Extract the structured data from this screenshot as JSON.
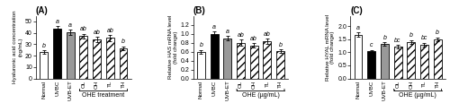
{
  "chart_data": [
    {
      "type": "bar",
      "title": "(A)",
      "ylabel": "Hyaluronic acid concentration\n(ng/mL)",
      "categories": [
        "Normal",
        "UVBC",
        "UVB-ET",
        "OL",
        "OH",
        "TL",
        "TH"
      ],
      "values": [
        23.0,
        43.5,
        40.5,
        37.0,
        34.0,
        35.5,
        26.5
      ],
      "errors": [
        1.5,
        2.5,
        2.0,
        2.0,
        2.5,
        2.5,
        1.5
      ],
      "letters": [
        "b",
        "a",
        "a",
        "ab",
        "ab",
        "ab",
        "b"
      ],
      "colors": [
        "white",
        "black",
        "#999999",
        "white",
        "white",
        "white",
        "white"
      ],
      "annotations": [
        {
          "text": "OHE treatment",
          "from": "OL",
          "to": "TH"
        }
      ],
      "ylim": [
        0,
        55
      ],
      "yticks": [
        0,
        10,
        20,
        30,
        40,
        50
      ],
      "grid": false
    },
    {
      "type": "bar",
      "title": "(B)",
      "ylabel": "Relative HAS mRNA level\n(fold change)",
      "categories": [
        "Normal",
        "UVBC",
        "UVB-ET",
        "OL",
        "OH",
        "TL",
        "TH"
      ],
      "values": [
        0.6,
        1.0,
        0.9,
        0.8,
        0.74,
        0.83,
        0.61
      ],
      "errors": [
        0.04,
        0.05,
        0.05,
        0.06,
        0.05,
        0.06,
        0.04
      ],
      "letters": [
        "b",
        "a",
        "a",
        "ab",
        "ab",
        "ab",
        "b"
      ],
      "colors": [
        "white",
        "black",
        "#999999",
        "white",
        "white",
        "white",
        "white"
      ],
      "annotations": [
        {
          "text": "OHE (µg/mL)",
          "from": "OL",
          "to": "TH"
        }
      ],
      "ylim": [
        0,
        1.4
      ],
      "yticks": [
        {
          "value": 0,
          "label": "0.0"
        },
        0.2,
        0.4,
        0.6,
        0.8,
        {
          "value": 1,
          "label": "1.0"
        },
        1.2
      ],
      "grid": false
    },
    {
      "type": "bar",
      "title": "(C)",
      "ylabel": "Relative HYAL mRNA level\n(fold change)",
      "categories": [
        "Normal",
        "UVBC",
        "UVB-ET",
        "OL",
        "OH",
        "TL",
        "TH"
      ],
      "values": [
        1.67,
        1.03,
        1.31,
        1.21,
        1.4,
        1.29,
        1.5
      ],
      "errors": [
        0.09,
        0.06,
        0.07,
        0.06,
        0.07,
        0.07,
        0.07
      ],
      "letters": [
        "a",
        "c",
        "b",
        "bc",
        "b",
        "bc",
        "b"
      ],
      "colors": [
        "white",
        "black",
        "#999999",
        "white",
        "white",
        "white",
        "white"
      ],
      "annotations": [
        {
          "text": "OHE (µg/mL)",
          "from": "OL",
          "to": "TH"
        }
      ],
      "ylim": [
        0,
        2.4
      ],
      "yticks": [
        {
          "value": 0,
          "label": "0.0"
        },
        0.5,
        {
          "value": 1,
          "label": "1.0"
        },
        1.5,
        {
          "value": 2,
          "label": "2.0"
        }
      ],
      "grid": false
    }
  ]
}
